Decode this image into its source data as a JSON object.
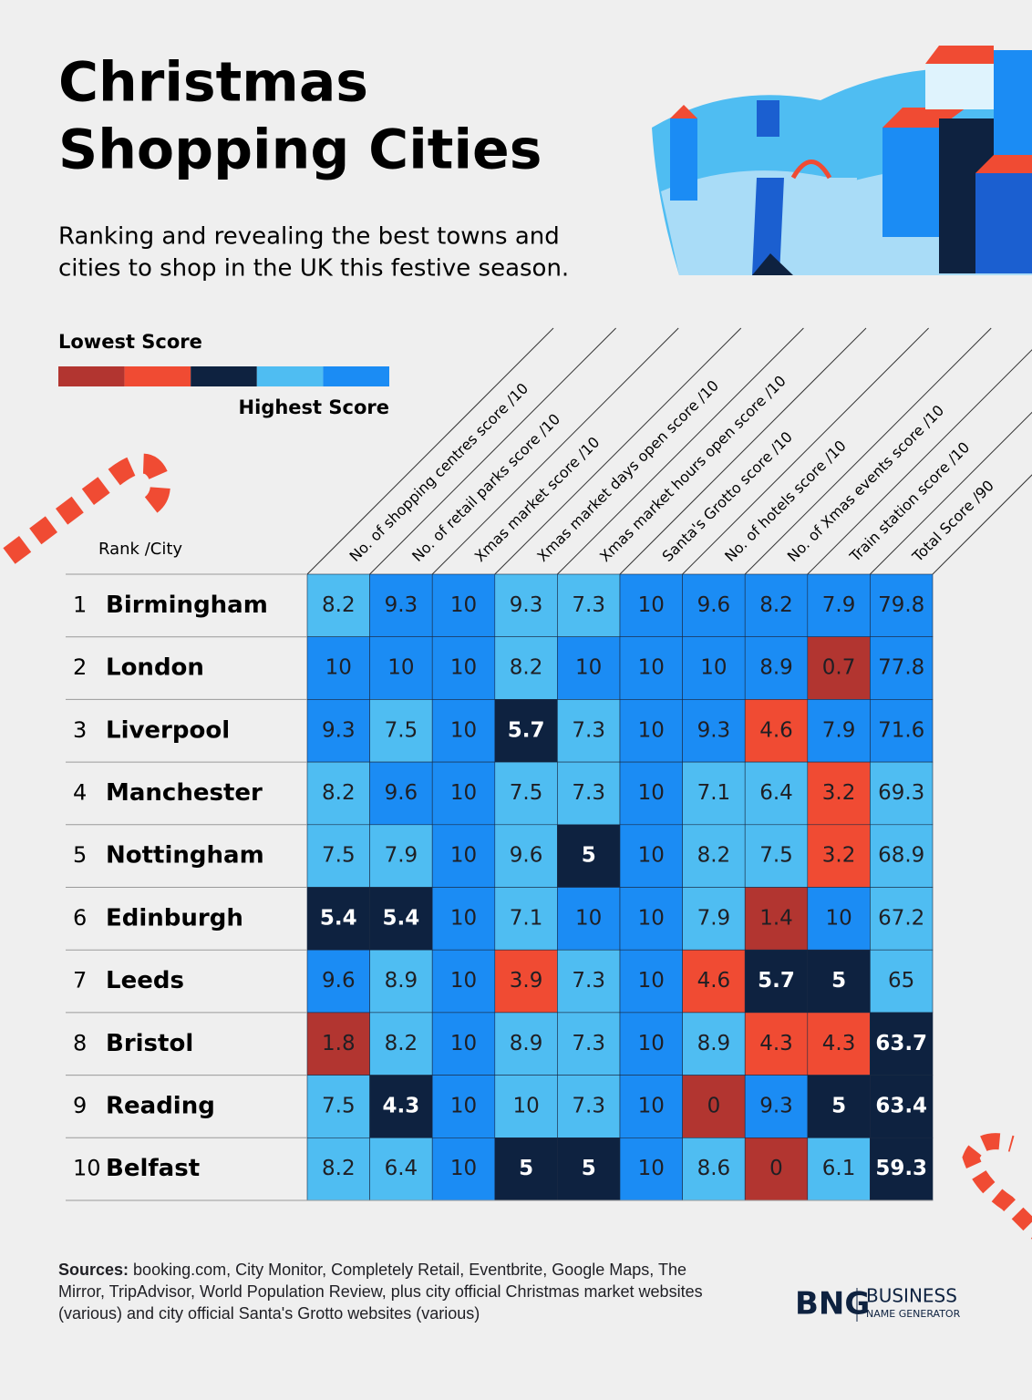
{
  "header": {
    "title_lines": [
      "Christmas",
      "Shopping Cities"
    ],
    "subtitle_lines": [
      "Ranking and revealing the best towns and",
      "cities to shop in the UK this festive season."
    ]
  },
  "legend": {
    "low": "Lowest Score",
    "high": "Highest Score",
    "colors": [
      "#b23530",
      "#f04b33",
      "#0e2240",
      "#4fbdf2",
      "#1b8cf4"
    ]
  },
  "table": {
    "corner": "Rank /City",
    "columns": [
      "No. of shopping centres score /10",
      "No. of retail parks score /10",
      "Xmas market score /10",
      "Xmas market days open score /10",
      "Xmas market hours open score /10",
      "Santa's Grotto score /10",
      "No. of hotels score /10",
      "No. of Xmas events score /10",
      "Train station score /10",
      "Total Score /90"
    ],
    "rows": [
      {
        "rank": 1,
        "city": "Birmingham",
        "values": [
          8.2,
          9.3,
          10,
          9.3,
          7.3,
          10,
          9.6,
          8.2,
          7.9,
          79.8
        ],
        "colors": [
          "#4fbdf2",
          "#1b8cf4",
          "#1b8cf4",
          "#4fbdf2",
          "#4fbdf2",
          "#1b8cf4",
          "#1b8cf4",
          "#1b8cf4",
          "#1b8cf4",
          "#1b8cf4"
        ]
      },
      {
        "rank": 2,
        "city": "London",
        "values": [
          10,
          10,
          10,
          8.2,
          10,
          10,
          10,
          8.9,
          0.7,
          77.8
        ],
        "colors": [
          "#1b8cf4",
          "#1b8cf4",
          "#1b8cf4",
          "#4fbdf2",
          "#1b8cf4",
          "#1b8cf4",
          "#1b8cf4",
          "#1b8cf4",
          "#b23530",
          "#1b8cf4"
        ]
      },
      {
        "rank": 3,
        "city": "Liverpool",
        "values": [
          9.3,
          7.5,
          10,
          5.7,
          7.3,
          10,
          9.3,
          4.6,
          7.9,
          71.6
        ],
        "colors": [
          "#1b8cf4",
          "#4fbdf2",
          "#1b8cf4",
          "#0e2240",
          "#4fbdf2",
          "#1b8cf4",
          "#1b8cf4",
          "#f04b33",
          "#1b8cf4",
          "#1b8cf4"
        ]
      },
      {
        "rank": 4,
        "city": "Manchester",
        "values": [
          8.2,
          9.6,
          10,
          7.5,
          7.3,
          10,
          7.1,
          6.4,
          3.2,
          69.3
        ],
        "colors": [
          "#4fbdf2",
          "#1b8cf4",
          "#1b8cf4",
          "#4fbdf2",
          "#4fbdf2",
          "#1b8cf4",
          "#4fbdf2",
          "#4fbdf2",
          "#f04b33",
          "#4fbdf2"
        ]
      },
      {
        "rank": 5,
        "city": "Nottingham",
        "values": [
          7.5,
          7.9,
          10,
          9.6,
          5,
          10,
          8.2,
          7.5,
          3.2,
          68.9
        ],
        "colors": [
          "#4fbdf2",
          "#4fbdf2",
          "#1b8cf4",
          "#4fbdf2",
          "#0e2240",
          "#1b8cf4",
          "#4fbdf2",
          "#4fbdf2",
          "#f04b33",
          "#4fbdf2"
        ]
      },
      {
        "rank": 6,
        "city": "Edinburgh",
        "values": [
          5.4,
          5.4,
          10,
          7.1,
          10,
          10,
          7.9,
          1.4,
          10,
          67.2
        ],
        "colors": [
          "#0e2240",
          "#0e2240",
          "#1b8cf4",
          "#4fbdf2",
          "#1b8cf4",
          "#1b8cf4",
          "#4fbdf2",
          "#b23530",
          "#1b8cf4",
          "#4fbdf2"
        ]
      },
      {
        "rank": 7,
        "city": "Leeds",
        "values": [
          9.6,
          8.9,
          10,
          3.9,
          7.3,
          10,
          4.6,
          5.7,
          5,
          65
        ],
        "colors": [
          "#1b8cf4",
          "#4fbdf2",
          "#1b8cf4",
          "#f04b33",
          "#4fbdf2",
          "#1b8cf4",
          "#f04b33",
          "#0e2240",
          "#0e2240",
          "#4fbdf2"
        ]
      },
      {
        "rank": 8,
        "city": "Bristol",
        "values": [
          1.8,
          8.2,
          10,
          8.9,
          7.3,
          10,
          8.9,
          4.3,
          4.3,
          63.7
        ],
        "colors": [
          "#b23530",
          "#4fbdf2",
          "#1b8cf4",
          "#4fbdf2",
          "#4fbdf2",
          "#1b8cf4",
          "#4fbdf2",
          "#f04b33",
          "#f04b33",
          "#0e2240"
        ]
      },
      {
        "rank": 9,
        "city": "Reading",
        "values": [
          7.5,
          4.3,
          10,
          10,
          7.3,
          10,
          0,
          9.3,
          5,
          63.4
        ],
        "colors": [
          "#4fbdf2",
          "#0e2240",
          "#1b8cf4",
          "#4fbdf2",
          "#4fbdf2",
          "#1b8cf4",
          "#b23530",
          "#1b8cf4",
          "#0e2240",
          "#0e2240"
        ]
      },
      {
        "rank": 10,
        "city": "Belfast",
        "values": [
          8.2,
          6.4,
          10,
          5,
          5,
          10,
          8.6,
          0,
          6.1,
          59.3
        ],
        "colors": [
          "#4fbdf2",
          "#4fbdf2",
          "#1b8cf4",
          "#0e2240",
          "#0e2240",
          "#1b8cf4",
          "#4fbdf2",
          "#b23530",
          "#4fbdf2",
          "#0e2240"
        ]
      }
    ]
  },
  "sources": {
    "label": "Sources:",
    "text": "booking.com, City Monitor, Completely Retail, Eventbrite, Google Maps, The Mirror, TripAdvisor, World Population Review, plus city official Christmas market websites (various) and city official Santa's Grotto websites (various)"
  },
  "logo": {
    "mark": "BNG",
    "name": "BUSINESS",
    "sub": "NAME GENERATOR"
  }
}
